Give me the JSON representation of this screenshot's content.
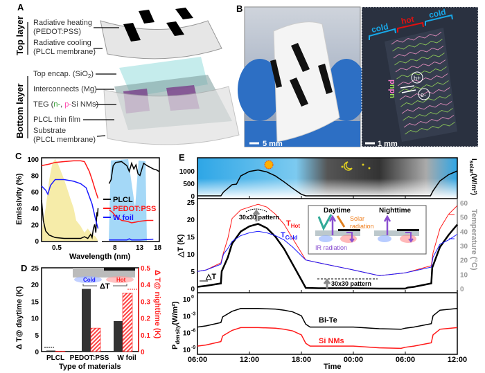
{
  "panels": {
    "a": "A",
    "b": "B",
    "c": "C",
    "d": "D",
    "e": "E"
  },
  "panel_a": {
    "top_layer": "Top layer",
    "bottom_layer": "Bottom layer",
    "radiative_heating": "Radiative heating",
    "pedot": "(PEDOT:PSS)",
    "radiative_cooling": "Radiative cooling",
    "plcl_membrane_1": "(PLCL membrane)",
    "top_encap": "Top encap. (SiO",
    "top_encap_sub": "2",
    "top_encap_end": ")",
    "interconnects": "Interconnects (Mg)",
    "teg_start": "TEG (",
    "teg_n": "n-",
    "teg_comma": ", ",
    "teg_p": "p-",
    "teg_end": "Si NMs)",
    "plcl_film": "PLCL thin film",
    "substrate": "Substrate",
    "plcl_membrane_2": "(PLCL membrane)"
  },
  "panel_b": {
    "scale_photo": "5 mm",
    "scale_micro": "1 mm",
    "cold": "cold",
    "hot": "hot",
    "hole": "h+",
    "electron": "e-",
    "p": "p",
    "n": "n"
  },
  "colors": {
    "black": "#000000",
    "red": "#ff1a1a",
    "blue": "#1a1aff",
    "gray": "#999999",
    "sky": "#3aaee8",
    "solar": "#f08020",
    "ir": "#8a4fd0"
  },
  "chart_data": [
    {
      "id": "C",
      "type": "line",
      "xlabel": "Wavelength (nm)",
      "ylabel": "Emissivity (%)",
      "ylim": [
        0,
        100
      ],
      "yticks": [
        "0",
        "20",
        "40",
        "60",
        "80",
        "100"
      ],
      "xticks": [
        "0.5",
        "8",
        "13",
        "18"
      ],
      "legend_position": "right",
      "series": [
        {
          "name": "PLCL",
          "color": "#000000",
          "left": {
            "x": [
              0.3,
              0.32,
              0.35,
              0.4,
              0.5,
              0.7,
              1.0,
              1.3,
              1.5,
              1.7,
              1.9,
              2.0,
              2.1,
              2.2,
              2.3,
              2.4,
              2.45,
              2.5
            ],
            "y": [
              50,
              25,
              12,
              7,
              4,
              3,
              3,
              3,
              5,
              3,
              8,
              4,
              15,
              20,
              10,
              35,
              30,
              40
            ]
          },
          "right": {
            "x": [
              7,
              7.3,
              7.6,
              8,
              9,
              10,
              10.5,
              11,
              11.5,
              12,
              12.5,
              13,
              14,
              15,
              16,
              17,
              18,
              19
            ],
            "y": [
              70,
              75,
              92,
              96,
              97,
              92,
              85,
              95,
              88,
              93,
              82,
              80,
              95,
              92,
              90,
              88,
              87,
              85
            ]
          }
        },
        {
          "name": "PEDOT:PSS",
          "color": "#ff1a1a",
          "left": {
            "x": [
              0.3,
              0.4,
              0.5,
              0.7,
              1.0,
              1.3,
              1.5,
              1.8,
              2.0,
              2.3,
              2.5
            ],
            "y": [
              92,
              94,
              96,
              97,
              98,
              98,
              97,
              85,
              75,
              60,
              52
            ]
          },
          "right": {
            "x": [
              7,
              7.5,
              8,
              9,
              10,
              11,
              12,
              13,
              15,
              17
            ],
            "y": [
              38,
              35,
              30,
              25,
              24,
              22,
              23,
              24,
              25,
              25
            ]
          }
        },
        {
          "name": "W foil",
          "color": "#1a1aff",
          "left": {
            "x": [
              0.3,
              0.35,
              0.38,
              0.42,
              0.5,
              0.7,
              1.0,
              1.3,
              1.6,
              2.0,
              2.3,
              2.5
            ],
            "y": [
              67,
              62,
              57,
              68,
              75,
              75,
              73,
              70,
              65,
              45,
              25,
              15
            ]
          },
          "right": {
            "x": [
              7,
              8,
              10,
              10.5,
              11,
              13,
              17
            ],
            "y": [
              1,
              1,
              1,
              2.5,
              1,
              1,
              2
            ]
          }
        }
      ]
    },
    {
      "id": "D",
      "type": "bar",
      "categories": [
        "PLCL",
        "PEDOT:PSS",
        "W foil"
      ],
      "xlabel": "Type of materials",
      "ylabel": "Δ T@ daytime (K)",
      "ylabel_right": "Δ T@ nighttime (K)",
      "ylim": [
        0,
        25
      ],
      "ylim_right": [
        0,
        0.5
      ],
      "yticks": [
        "0",
        "5",
        "10",
        "15",
        "20",
        "25"
      ],
      "yticks_right": [
        "0",
        "0.1",
        "0.2",
        "0.3",
        "0.4",
        "0.5"
      ],
      "series": [
        {
          "name": "daytime",
          "values": [
            0.3,
            18.7,
            9.1
          ],
          "color": "#333333"
        },
        {
          "name": "nighttime",
          "values": [
            0.003,
            0.14,
            0.35
          ],
          "color": "#ff1a1a"
        }
      ],
      "inset": {
        "cold": "Cold",
        "hot": "Hot",
        "delta": "ΔT"
      }
    },
    {
      "id": "E",
      "type": "line",
      "xlabel": "Time",
      "xticks": [
        "06:00",
        "12:00",
        "18:00",
        "00:00",
        "06:00",
        "12:00"
      ],
      "x_hours_range": [
        6,
        36
      ],
      "solar": {
        "ylabel": "I",
        "ylabel_sub": "solar",
        "ylabel_unit": "(W/m²)",
        "ylim": [
          0,
          1400
        ],
        "yticks": [
          "0",
          "500",
          "1000"
        ],
        "x": [
          6,
          8.7,
          9,
          9.5,
          10,
          10.5,
          11,
          12,
          13,
          14,
          15,
          16,
          17,
          18,
          18.5,
          24,
          30,
          32.9,
          33.2,
          34,
          35,
          36
        ],
        "y": [
          0,
          0,
          150,
          300,
          450,
          470,
          800,
          980,
          1040,
          960,
          800,
          560,
          300,
          60,
          0,
          0,
          0,
          0,
          200,
          600,
          850,
          1000
        ]
      },
      "delta": {
        "ylabel": "△T (K)",
        "ylim": [
          0,
          25
        ],
        "yticks": [
          "0",
          "5",
          "10",
          "15",
          "20",
          "25"
        ],
        "ylabel_right": "Temperature (°C)",
        "ylim_right": [
          0,
          60
        ],
        "yticks_right": [
          "0",
          "10",
          "20",
          "30",
          "40",
          "50",
          "60"
        ],
        "series": [
          {
            "name": "ΔT",
            "color": "#000000",
            "axis": "left",
            "x": [
              6,
              7,
              8.7,
              8.8,
              9.5,
              10,
              11,
              12,
              13,
              14,
              15,
              16,
              17,
              18,
              18.5,
              20,
              24,
              27,
              30,
              30.3,
              31,
              33,
              33.1,
              34,
              35,
              36
            ],
            "y": [
              0.5,
              0.8,
              1.5,
              5,
              9,
              13,
              16.5,
              18,
              18.7,
              17.5,
              15,
              11.5,
              7,
              2.5,
              0.2,
              0.1,
              0.1,
              0,
              0,
              0.3,
              0.5,
              1.5,
              6,
              12,
              15.5,
              18.5
            ]
          },
          {
            "name": "T_Hot",
            "label": "T",
            "label_sub": "Hot",
            "color": "#ff1a1a",
            "axis": "right",
            "x": [
              6,
              7,
              8.7,
              9,
              9.5,
              10,
              11,
              12,
              13,
              14,
              15,
              16,
              17,
              18,
              18.5,
              20,
              24,
              27,
              30,
              33,
              33.2,
              34,
              35,
              36
            ],
            "y": [
              12,
              13,
              18,
              25,
              35,
              49,
              55,
              57,
              59,
              57,
              52,
              45,
              35,
              25,
              20,
              18,
              13,
              9,
              11,
              16,
              25,
              42,
              52,
              58
            ]
          },
          {
            "name": "T_Cold",
            "label": "T",
            "label_sub": "Cold",
            "color": "#1a1aff",
            "axis": "right",
            "x": [
              6,
              7,
              8.7,
              9,
              9.5,
              10,
              11,
              12,
              13,
              14,
              15,
              16,
              17,
              18,
              18.5,
              20,
              24,
              27,
              30,
              33,
              33.2,
              34,
              35,
              36
            ],
            "y": [
              12,
              13,
              17,
              24,
              28,
              33,
              37,
              39,
              40,
              39,
              37,
              34,
              29,
              23,
              20,
              18,
              13,
              9,
              11,
              15,
              22,
              31,
              34,
              38
            ]
          }
        ],
        "annotations": {
          "pattern_day": "30x30 pattern",
          "pattern_night": "30x30 pattern",
          "delta_arrow": "△T"
        },
        "inset": {
          "daytime": "Daytime",
          "nighttime": "Nighttime",
          "solar_1": "Solar",
          "solar_2": "radiation",
          "ir": "IR radiation"
        }
      },
      "power": {
        "ylabel": "P",
        "ylabel_sub": "density",
        "ylabel_unit": "(W/m²)",
        "ylim_log10": [
          -10,
          0.5
        ],
        "yticks": [
          "10",
          "10",
          "10",
          "10"
        ],
        "ytick_exponents": [
          "0",
          "-3",
          "-6",
          "-9"
        ],
        "series": [
          {
            "name": "Bi-Te",
            "color": "#000000",
            "x": [
              6,
              7,
              8.7,
              8.9,
              10,
              11,
              13,
              15,
              16,
              17,
              18,
              18.5,
              19,
              24,
              27,
              29.5,
              30,
              31,
              33,
              33.2,
              34,
              36
            ],
            "y_log10": [
              -5,
              -4.8,
              -4.2,
              -3.2,
              -2.2,
              -1.7,
              -1.7,
              -1.8,
              -2,
              -2.3,
              -3,
              -4.5,
              -5,
              -5,
              -5.3,
              -5.4,
              -5.2,
              -5,
              -4.4,
              -3,
              -2,
              -1.7
            ]
          },
          {
            "name": "Si NMs",
            "color": "#ff1a1a",
            "x": [
              6,
              7,
              8.7,
              8.9,
              10,
              11,
              13,
              15,
              16,
              17,
              18,
              18.5,
              19,
              24,
              27,
              29.5,
              30,
              31,
              33,
              33.2,
              34,
              36
            ],
            "y_log10": [
              -8.4,
              -8.2,
              -7.6,
              -6.6,
              -5.6,
              -5.1,
              -5.1,
              -5.2,
              -5.4,
              -5.7,
              -6.4,
              -7.9,
              -8.4,
              -8.4,
              -8.7,
              -8.8,
              -8.6,
              -8.4,
              -7.8,
              -6.4,
              -5.4,
              -5.1
            ]
          }
        ]
      }
    }
  ]
}
